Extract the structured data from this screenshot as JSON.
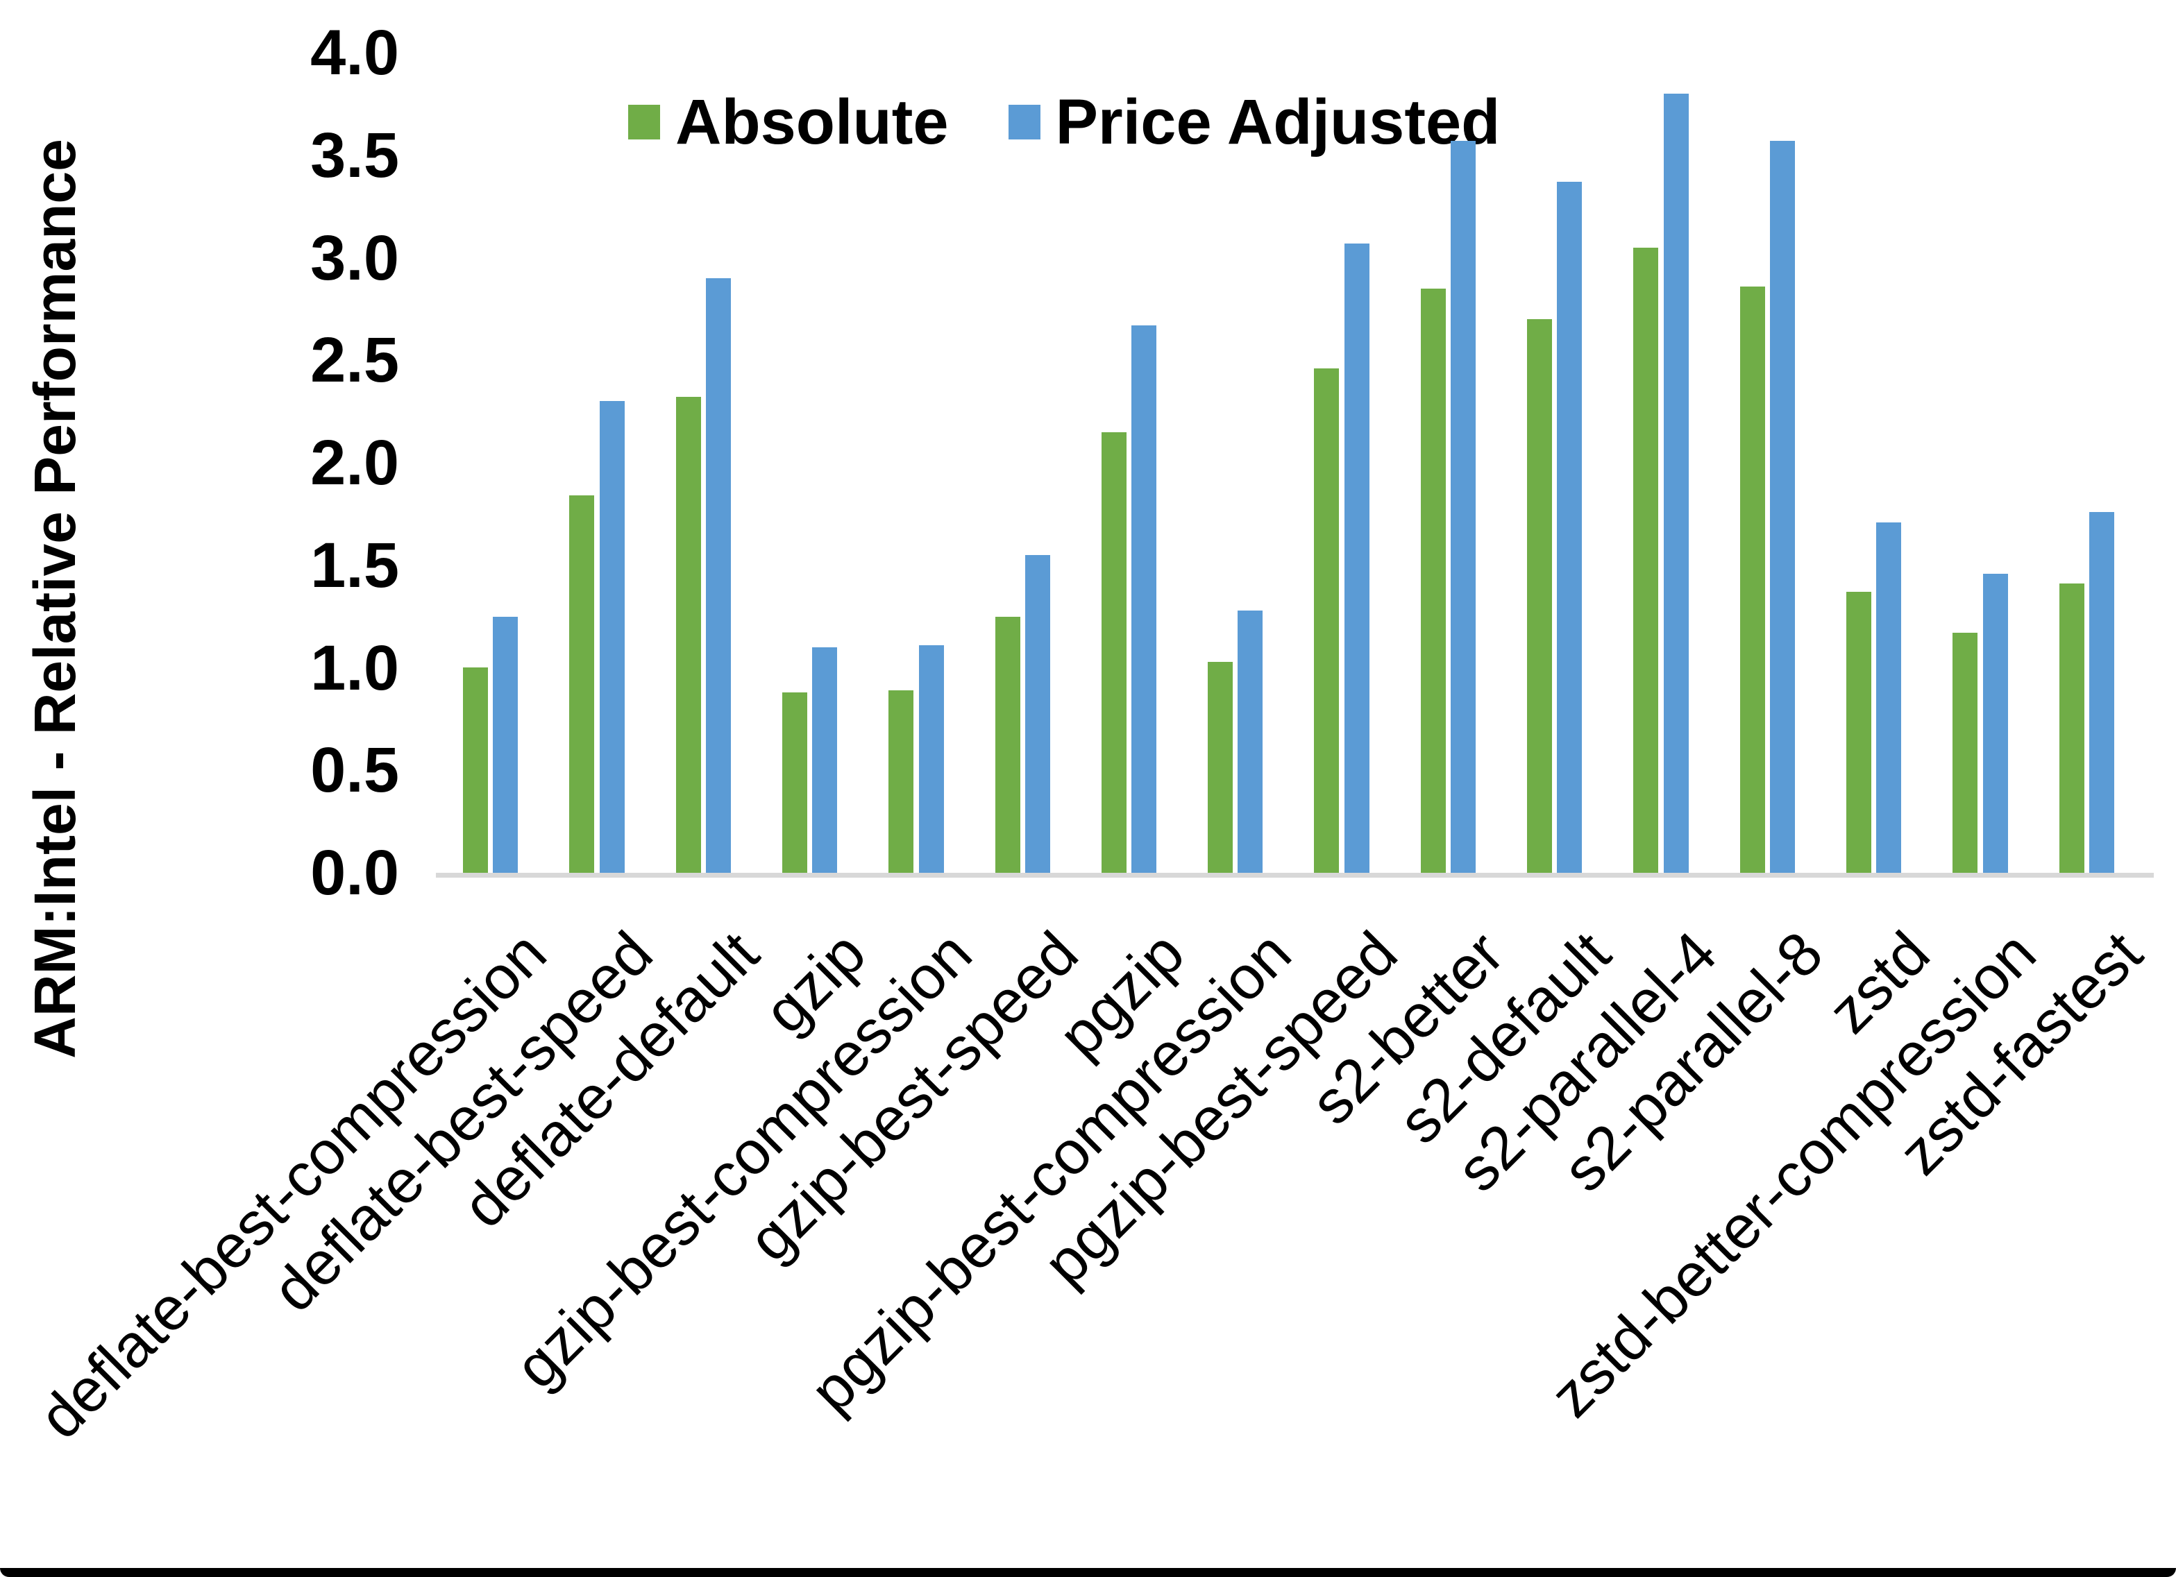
{
  "chart_data": {
    "type": "bar",
    "title": "",
    "xlabel": "",
    "ylabel": "ARM:Intel - Relative Performance",
    "ylim": [
      0.0,
      4.0
    ],
    "ytick_step": 0.5,
    "yticks": [
      "0.0",
      "0.5",
      "1.0",
      "1.5",
      "2.0",
      "2.5",
      "3.0",
      "3.5",
      "4.0"
    ],
    "grid": false,
    "legend_position": "top-center",
    "categories": [
      "deflate-best-compression",
      "deflate-best-speed",
      "deflate-default",
      "gzip",
      "gzip-best-compression",
      "gzip-best-speed",
      "pgzip",
      "pgzip-best-compression",
      "pgzip-best-speed",
      "s2-better",
      "s2-default",
      "s2-parallel-4",
      "s2-parallel-8",
      "zstd",
      "zstd-better-compression",
      "zstd-fastest"
    ],
    "series": [
      {
        "name": "Absolute",
        "color": "#70AD47",
        "values": [
          1.0,
          1.84,
          2.32,
          0.88,
          0.89,
          1.25,
          2.15,
          1.03,
          2.46,
          2.85,
          2.7,
          3.05,
          2.86,
          1.37,
          1.17,
          1.41
        ]
      },
      {
        "name": "Price Adjusted",
        "color": "#5B9BD5",
        "values": [
          1.25,
          2.3,
          2.9,
          1.1,
          1.11,
          1.55,
          2.67,
          1.28,
          3.07,
          3.57,
          3.37,
          3.8,
          3.57,
          1.71,
          1.46,
          1.76
        ]
      }
    ]
  },
  "colors": {
    "background": "#FFFFFF",
    "axis_line": "#D8D8D8",
    "text": "#000000",
    "bottom_border": "#000000"
  }
}
